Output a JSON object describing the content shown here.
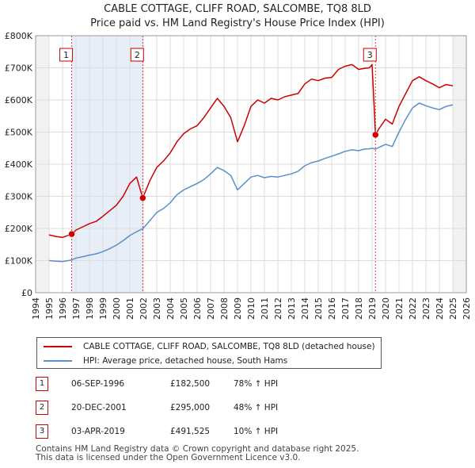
{
  "chart_data": {
    "type": "line",
    "title": "CABLE COTTAGE, CLIFF ROAD, SALCOMBE, TQ8 8LD",
    "subtitle": "Price paid vs. HM Land Registry's House Price Index (HPI)",
    "ylim": [
      0,
      800000
    ],
    "xlim": [
      1994,
      2026
    ],
    "y_ticks": [
      0,
      100000,
      200000,
      300000,
      400000,
      500000,
      600000,
      700000,
      800000
    ],
    "y_tick_labels": [
      "£0",
      "£100K",
      "£200K",
      "£300K",
      "£400K",
      "£500K",
      "£600K",
      "£700K",
      "£800K"
    ],
    "x_ticks": [
      "1994",
      "1995",
      "1996",
      "1997",
      "1998",
      "1999",
      "2000",
      "2001",
      "2002",
      "2003",
      "2004",
      "2005",
      "2006",
      "2007",
      "2008",
      "2009",
      "2010",
      "2011",
      "2012",
      "2013",
      "2014",
      "2015",
      "2016",
      "2017",
      "2018",
      "2019",
      "2020",
      "2021",
      "2022",
      "2023",
      "2024",
      "2025",
      "2026"
    ],
    "data_range": [
      1995.0,
      2025.0
    ],
    "series": [
      {
        "name": "CABLE COTTAGE, CLIFF ROAD, SALCOMBE, TQ8 8LD (detached house)",
        "color": "#cc0000",
        "x": [
          1995.0,
          1995.5,
          1996.0,
          1996.68,
          1997.0,
          1997.5,
          1998.0,
          1998.5,
          1999.0,
          1999.5,
          2000.0,
          2000.5,
          2001.0,
          2001.5,
          2001.96,
          2002.5,
          2003.0,
          2003.5,
          2004.0,
          2004.5,
          2005.0,
          2005.5,
          2006.0,
          2006.5,
          2007.0,
          2007.5,
          2008.0,
          2008.5,
          2009.0,
          2009.5,
          2010.0,
          2010.5,
          2011.0,
          2011.5,
          2012.0,
          2012.5,
          2013.0,
          2013.5,
          2014.0,
          2014.5,
          2015.0,
          2015.5,
          2016.0,
          2016.5,
          2017.0,
          2017.5,
          2018.0,
          2018.4,
          2018.8,
          2019.0,
          2019.25,
          2019.5,
          2020.0,
          2020.5,
          2021.0,
          2021.5,
          2022.0,
          2022.5,
          2023.0,
          2023.5,
          2024.0,
          2024.5,
          2025.0
        ],
        "values": [
          180000,
          175000,
          172000,
          182500,
          195000,
          205000,
          215000,
          222000,
          238000,
          255000,
          272000,
          300000,
          340000,
          360000,
          295000,
          350000,
          390000,
          410000,
          435000,
          470000,
          495000,
          510000,
          520000,
          545000,
          575000,
          605000,
          580000,
          545000,
          470000,
          520000,
          580000,
          600000,
          590000,
          605000,
          600000,
          610000,
          615000,
          620000,
          650000,
          665000,
          660000,
          668000,
          670000,
          695000,
          705000,
          710000,
          695000,
          698000,
          700000,
          710000,
          491525,
          510000,
          540000,
          525000,
          580000,
          620000,
          660000,
          672000,
          660000,
          650000,
          638000,
          648000,
          644000
        ]
      },
      {
        "name": "HPI: Average price, detached house, South Hams",
        "color": "#5b8fc9",
        "x": [
          1995.0,
          1995.5,
          1996.0,
          1996.68,
          1997.0,
          1997.5,
          1998.0,
          1998.5,
          1999.0,
          1999.5,
          2000.0,
          2000.5,
          2001.0,
          2001.5,
          2001.96,
          2002.5,
          2003.0,
          2003.5,
          2004.0,
          2004.5,
          2005.0,
          2005.5,
          2006.0,
          2006.5,
          2007.0,
          2007.5,
          2008.0,
          2008.5,
          2009.0,
          2009.5,
          2010.0,
          2010.5,
          2011.0,
          2011.5,
          2012.0,
          2012.5,
          2013.0,
          2013.5,
          2014.0,
          2014.5,
          2015.0,
          2015.5,
          2016.0,
          2016.5,
          2017.0,
          2017.5,
          2018.0,
          2018.4,
          2018.8,
          2019.0,
          2019.25,
          2019.5,
          2020.0,
          2020.5,
          2021.0,
          2021.5,
          2022.0,
          2022.5,
          2023.0,
          2023.5,
          2024.0,
          2024.5,
          2025.0
        ],
        "values": [
          100000,
          98000,
          97000,
          102000,
          108000,
          112000,
          117000,
          121000,
          128000,
          137000,
          148000,
          162000,
          178000,
          190000,
          199000,
          225000,
          250000,
          262000,
          280000,
          305000,
          320000,
          330000,
          340000,
          352000,
          370000,
          390000,
          380000,
          365000,
          320000,
          340000,
          360000,
          365000,
          358000,
          362000,
          360000,
          365000,
          370000,
          378000,
          395000,
          405000,
          410000,
          418000,
          425000,
          432000,
          440000,
          445000,
          442000,
          447000,
          448000,
          450000,
          447000,
          452000,
          462000,
          455000,
          500000,
          540000,
          575000,
          590000,
          582000,
          575000,
          570000,
          580000,
          585000
        ]
      }
    ],
    "sales": [
      {
        "label": "1",
        "x": 1996.68,
        "value": 182500
      },
      {
        "label": "2",
        "x": 2001.96,
        "value": 295000
      },
      {
        "label": "3",
        "x": 2019.25,
        "value": 491525
      }
    ]
  },
  "legend": {
    "property_label": "CABLE COTTAGE, CLIFF ROAD, SALCOMBE, TQ8 8LD (detached house)",
    "hpi_label": "HPI: Average price, detached house, South Hams"
  },
  "transactions": [
    {
      "num": "1",
      "date": "06-SEP-1996",
      "price": "£182,500",
      "hpi": "78% ↑ HPI"
    },
    {
      "num": "2",
      "date": "20-DEC-2001",
      "price": "£295,000",
      "hpi": "48% ↑ HPI"
    },
    {
      "num": "3",
      "date": "03-APR-2019",
      "price": "£491,525",
      "hpi": "10% ↑ HPI"
    }
  ],
  "footer": {
    "line1": "Contains HM Land Registry data © Crown copyright and database right 2025.",
    "line2": "This data is licensed under the Open Government Licence v3.0."
  }
}
